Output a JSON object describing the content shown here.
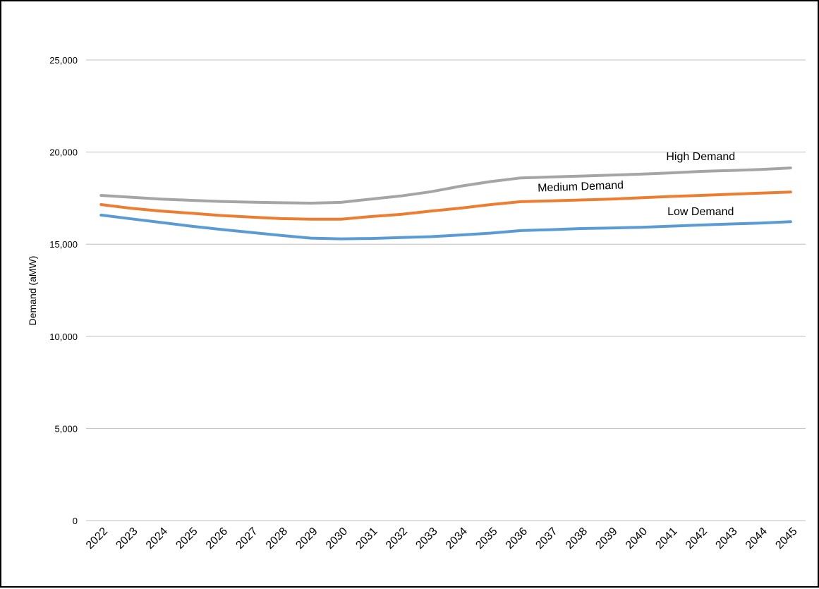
{
  "chart_data": {
    "type": "line",
    "title": "",
    "xlabel": "",
    "ylabel": "Demand (aMW)",
    "ylim": [
      0,
      25000
    ],
    "yticks": [
      0,
      5000,
      10000,
      15000,
      20000,
      25000
    ],
    "ytick_labels": [
      "0",
      "5,000",
      "10,000",
      "15,000",
      "20,000",
      "25,000"
    ],
    "grid": true,
    "legend": "none",
    "categories": [
      "2022",
      "2023",
      "2024",
      "2025",
      "2026",
      "2027",
      "2028",
      "2029",
      "2030",
      "2031",
      "2032",
      "2033",
      "2034",
      "2035",
      "2036",
      "2037",
      "2038",
      "2039",
      "2040",
      "2041",
      "2042",
      "2043",
      "2044",
      "2045"
    ],
    "series": [
      {
        "name": "High Demand",
        "color": "#a5a5a5",
        "values": [
          17650,
          17550,
          17450,
          17380,
          17320,
          17280,
          17250,
          17230,
          17270,
          17450,
          17620,
          17850,
          18150,
          18400,
          18600,
          18650,
          18700,
          18750,
          18800,
          18870,
          18950,
          19000,
          19060,
          19140
        ]
      },
      {
        "name": "Medium Demand",
        "color": "#ed7d31",
        "values": [
          17150,
          16950,
          16800,
          16680,
          16560,
          16470,
          16390,
          16360,
          16360,
          16500,
          16620,
          16800,
          16960,
          17150,
          17310,
          17350,
          17400,
          17450,
          17520,
          17590,
          17650,
          17710,
          17770,
          17830
        ]
      },
      {
        "name": "Low Demand",
        "color": "#5b9bd5",
        "values": [
          16580,
          16380,
          16180,
          15980,
          15800,
          15640,
          15480,
          15330,
          15290,
          15310,
          15360,
          15410,
          15500,
          15600,
          15740,
          15790,
          15850,
          15880,
          15920,
          15980,
          16040,
          16100,
          16150,
          16220
        ]
      }
    ]
  }
}
